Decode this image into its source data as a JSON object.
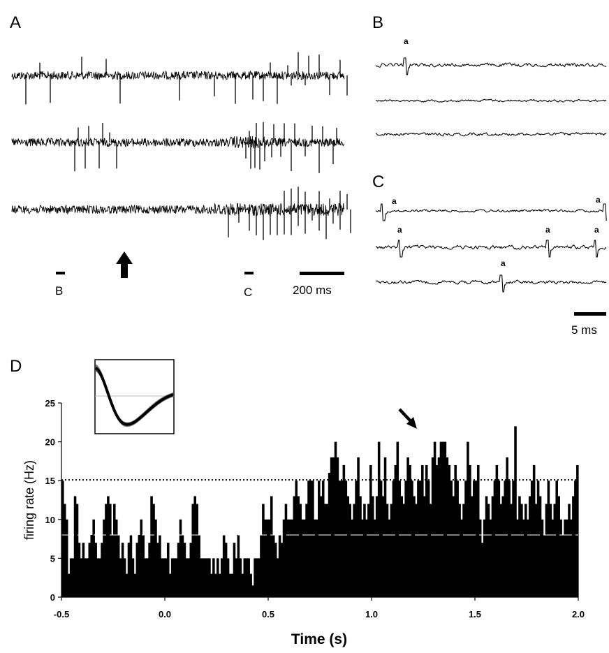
{
  "panels": {
    "a": "A",
    "b": "B",
    "c": "C",
    "d": "D"
  },
  "panel_a": {
    "markers": [
      "B",
      "C"
    ],
    "scalebar_label": "200 ms",
    "traces": 3
  },
  "panel_bc": {
    "spike_label": "a",
    "scalebar_label": "5 ms"
  },
  "chart_data": {
    "type": "bar",
    "x_start": -0.5,
    "x_end": 2.0,
    "bin_width": 0.01,
    "xticks": [
      -0.5,
      0.0,
      0.5,
      1.0,
      1.5,
      2.0
    ],
    "xtick_labels": [
      "-0.5",
      "0.0",
      "0.5",
      "1.0",
      "1.5",
      "2.0"
    ],
    "yticks": [
      0,
      5,
      10,
      15,
      20,
      25
    ],
    "ytick_labels": [
      "0",
      "5",
      "10",
      "15",
      "20",
      "25"
    ],
    "ylim": [
      0,
      25
    ],
    "xlabel": "Time (s)",
    "ylabel": "firing rate (Hz)",
    "threshold_dotted": 15.1,
    "mean_dashed": 8.0,
    "values": [
      15,
      12,
      10,
      3,
      5,
      5,
      13,
      12,
      7,
      5,
      7,
      5,
      5,
      7,
      8,
      10,
      7,
      5,
      5,
      7,
      10,
      12,
      13,
      12,
      8,
      12,
      10,
      8,
      5,
      7,
      5,
      3,
      7,
      8,
      5,
      3,
      7,
      8,
      10,
      8,
      5,
      5,
      7,
      13,
      12,
      10,
      7,
      8,
      5,
      5,
      5,
      7,
      3,
      5,
      5,
      5,
      7,
      10,
      8,
      7,
      5,
      5,
      7,
      12,
      13,
      12,
      8,
      5,
      5,
      5,
      5,
      5,
      3,
      5,
      3,
      5,
      3,
      5,
      8,
      7,
      5,
      3,
      3,
      7,
      5,
      8,
      5,
      3,
      5,
      5,
      5,
      3,
      1.5,
      5,
      5,
      5,
      8,
      12,
      10,
      10,
      10,
      13,
      8,
      7,
      5,
      8,
      7,
      10,
      12,
      10,
      10,
      10,
      13,
      15,
      13,
      12,
      10,
      10,
      12,
      15,
      15,
      15,
      10,
      10,
      15,
      13,
      15,
      12,
      12,
      16,
      18,
      18,
      20,
      18,
      15,
      15,
      17,
      15,
      13,
      12,
      10,
      12,
      15,
      18,
      13,
      10,
      12,
      10,
      12,
      17,
      13,
      10,
      13,
      20,
      15,
      13,
      18,
      12,
      10,
      12,
      15,
      17,
      20,
      15,
      13,
      12,
      15,
      18,
      17,
      15,
      13,
      12,
      15,
      15,
      17,
      13,
      17,
      15,
      12,
      18,
      20,
      17,
      18,
      20,
      20,
      20,
      18,
      17,
      15,
      13,
      17,
      15,
      12,
      10,
      12,
      15,
      20,
      17,
      13,
      15,
      15,
      17,
      10,
      7,
      10,
      13,
      12,
      10,
      13,
      15,
      17,
      15,
      12,
      13,
      15,
      18,
      15,
      12,
      15,
      22,
      10,
      13,
      12,
      10,
      12,
      10,
      13,
      15,
      17,
      12,
      15,
      13,
      10,
      8,
      12,
      15,
      12,
      10,
      12,
      15,
      13,
      10,
      8,
      10,
      10,
      12,
      10,
      13,
      15,
      17
    ]
  }
}
